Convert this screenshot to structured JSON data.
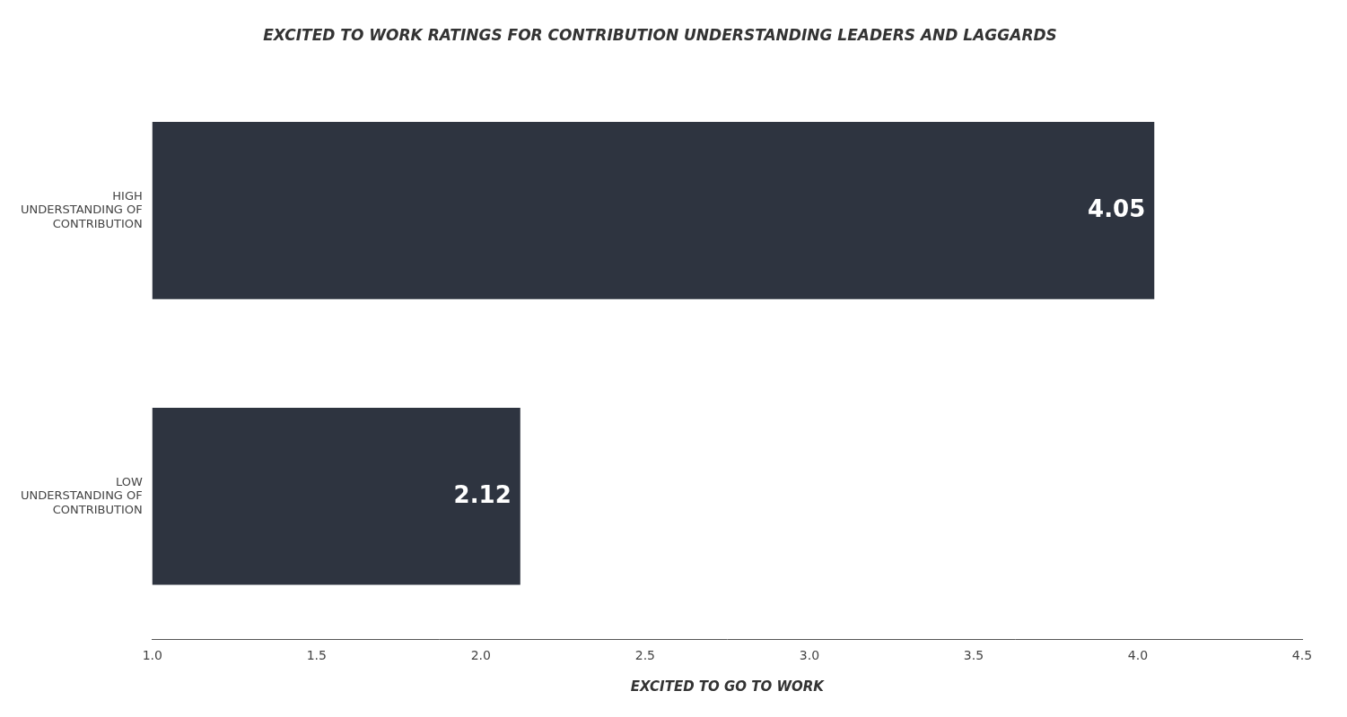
{
  "chart_data": {
    "type": "bar",
    "orientation": "horizontal",
    "title": "EXCITED TO WORK RATINGS FOR CONTRIBUTION UNDERSTANDING LEADERS AND LAGGARDS",
    "x_label": "EXCITED TO GO TO WORK",
    "categories": [
      "HIGH\nUNDERSTANDING OF\nCONTRIBUTION",
      "LOW\nUNDERSTANDING OF\nCONTRIBUTION"
    ],
    "values": [
      4.05,
      2.12
    ],
    "color": "#2e3440",
    "xlim": [
      1.0,
      4.5
    ],
    "xticks": [
      {
        "value": 1.0,
        "label": "1.0"
      },
      1.5,
      {
        "value": 2.0,
        "label": "2.0"
      },
      2.5,
      {
        "value": 3.0,
        "label": "3.0"
      },
      3.5,
      {
        "value": 4.0,
        "label": "4.0"
      },
      4.5
    ],
    "data_labels": true,
    "grid": false
  }
}
